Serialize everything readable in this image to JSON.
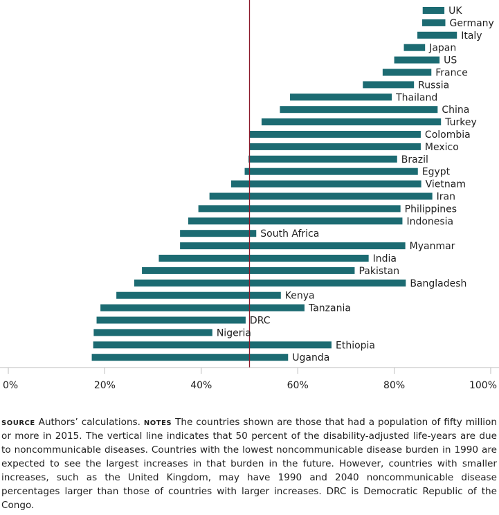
{
  "chart_data": {
    "type": "bar",
    "subtype": "range (dumbbell-style bars from 1990 to 2040 share)",
    "title": "",
    "xlabel": "",
    "ylabel": "",
    "xlim": [
      0,
      100
    ],
    "x_ticks": [
      "0%",
      "20%",
      "40%",
      "60%",
      "80%",
      "100%"
    ],
    "x_tick_values": [
      0,
      20,
      40,
      60,
      80,
      100
    ],
    "reference_line": {
      "value": 50,
      "color": "#8b1a2b"
    },
    "bar_color": "#1c6b72",
    "categories": [
      "UK",
      "Germany",
      "Italy",
      "Japan",
      "US",
      "France",
      "Russia",
      "Thailand",
      "China",
      "Turkey",
      "Colombia",
      "Mexico",
      "Brazil",
      "Egypt",
      "Vietnam",
      "Iran",
      "Philippines",
      "Indonesia",
      "South Africa",
      "Myanmar",
      "India",
      "Pakistan",
      "Bangladesh",
      "Kenya",
      "Tanzania",
      "DRC",
      "Nigeria",
      "Ethiopia",
      "Uganda"
    ],
    "series": [
      {
        "name": "start",
        "values": [
          85.9,
          85.8,
          84.8,
          82.0,
          80.0,
          77.6,
          73.5,
          58.4,
          56.3,
          52.5,
          50.0,
          50.0,
          49.8,
          49.0,
          46.2,
          41.7,
          39.4,
          37.3,
          35.6,
          35.6,
          31.2,
          27.7,
          26.1,
          22.4,
          19.1,
          18.3,
          17.7,
          17.6,
          17.3
        ]
      },
      {
        "name": "end",
        "values": [
          90.4,
          90.6,
          93.0,
          86.4,
          89.4,
          87.7,
          84.1,
          79.5,
          89.0,
          89.7,
          85.5,
          85.5,
          80.6,
          84.9,
          85.6,
          87.9,
          81.3,
          81.7,
          51.4,
          82.3,
          74.7,
          71.8,
          82.4,
          56.5,
          61.4,
          49.2,
          42.3,
          67.0,
          58.0
        ]
      }
    ]
  },
  "notes": {
    "source_label": "Source",
    "source_text": "Authors’ calculations.",
    "notes_label": "Notes",
    "notes_text": "The countries shown are those that had a population of fifty million or more in 2015. The vertical line indicates that 50 percent of the disability-adjusted life-years are due to noncommunicable diseases. Countries with the lowest noncommunicable disease burden in 1990 are expected to see the largest increases in that burden in the future. However, countries with smaller increases, such as the United Kingdom, may have 1990 and 2040 noncommunicable disease percentages larger than those of countries with larger increases. DRC is Democratic Republic of the Congo."
  }
}
